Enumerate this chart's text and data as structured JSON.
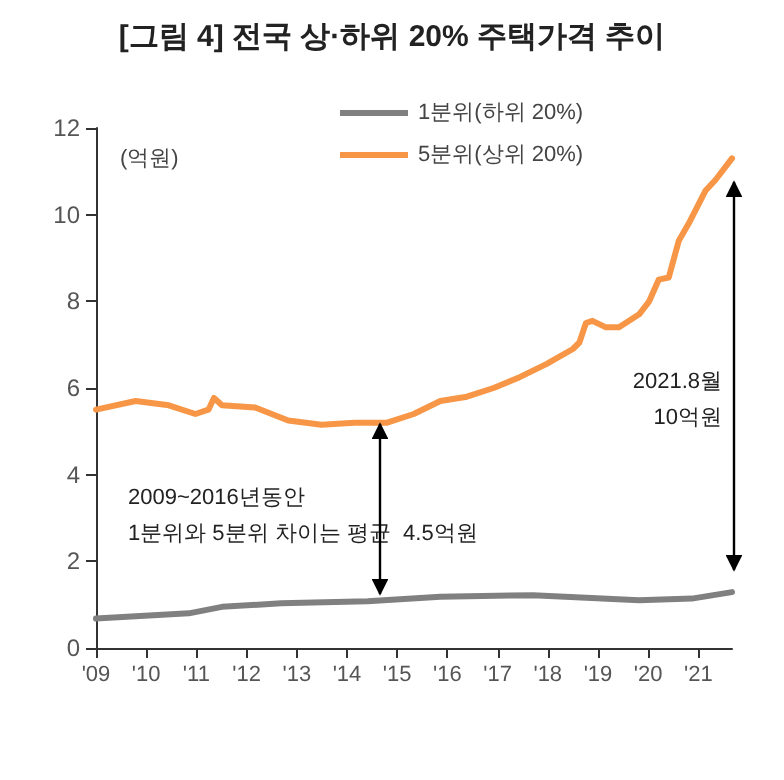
{
  "chart_data": {
    "type": "line",
    "title": "[그림 4] 전국 상·하위 20% 주택가격 추이",
    "ylabel": "(억원)",
    "series": [
      {
        "name": "1분위(하위 20%)",
        "color": "#808080",
        "x": [
          2009.0,
          2010.85,
          2011.51,
          2012.69,
          2014.41,
          2015.86,
          2017.71,
          2019.82,
          2020.87,
          2021.67
        ],
        "values": [
          0.68,
          0.8,
          0.95,
          1.03,
          1.08,
          1.18,
          1.22,
          1.1,
          1.14,
          1.29
        ]
      },
      {
        "name": "5분위(상위 20%)",
        "color": "#f79646",
        "x": [
          2009.0,
          2009.79,
          2010.45,
          2010.98,
          2011.24,
          2011.35,
          2011.51,
          2012.17,
          2012.83,
          2013.49,
          2014.15,
          2014.8,
          2015.33,
          2015.86,
          2016.39,
          2016.92,
          2017.44,
          2017.97,
          2018.5,
          2018.63,
          2018.76,
          2018.89,
          2019.16,
          2019.42,
          2019.82,
          2020.02,
          2020.21,
          2020.41,
          2020.61,
          2020.81,
          2021.14,
          2021.34,
          2021.67
        ],
        "values": [
          5.5,
          5.7,
          5.6,
          5.4,
          5.5,
          5.77,
          5.6,
          5.55,
          5.25,
          5.15,
          5.2,
          5.2,
          5.4,
          5.7,
          5.8,
          6.0,
          6.25,
          6.55,
          6.9,
          7.05,
          7.5,
          7.55,
          7.4,
          7.4,
          7.7,
          8.0,
          8.5,
          8.55,
          9.4,
          9.8,
          10.55,
          10.8,
          11.3
        ]
      }
    ],
    "xlim": [
      2009,
      2021.67
    ],
    "xticks": [
      {
        "value": 2009,
        "label": "'09"
      },
      {
        "value": 2010,
        "label": "'10"
      },
      {
        "value": 2011,
        "label": "'11"
      },
      {
        "value": 2012,
        "label": "'12"
      },
      {
        "value": 2013,
        "label": "'13"
      },
      {
        "value": 2014,
        "label": "'14"
      },
      {
        "value": 2015,
        "label": "'15"
      },
      {
        "value": 2016,
        "label": "'16"
      },
      {
        "value": 2017,
        "label": "'17"
      },
      {
        "value": 2018,
        "label": "'18"
      },
      {
        "value": 2019,
        "label": "'19"
      },
      {
        "value": 2020,
        "label": "'20"
      },
      {
        "value": 2021,
        "label": "'21"
      }
    ],
    "ylim": [
      0,
      12
    ],
    "yticks": [
      0,
      2,
      4,
      6,
      8,
      10,
      12
    ],
    "annotations": [
      "2009~2016년동안\n1분위와 5분위 차이는 평균  4.5억원",
      "2021.8월\n10억원"
    ],
    "grid": false,
    "legend": "top",
    "marker": "none",
    "line_style": "solid"
  }
}
